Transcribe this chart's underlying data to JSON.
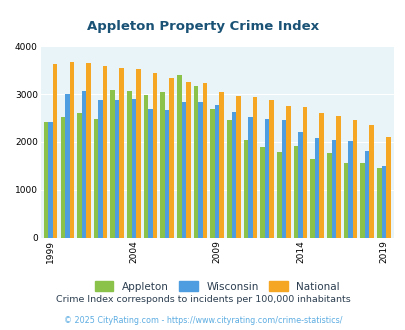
{
  "title": "Appleton Property Crime Index",
  "title_color": "#1a5276",
  "subtitle": "Crime Index corresponds to incidents per 100,000 inhabitants",
  "subtitle_color": "#2c3e50",
  "copyright": "© 2025 CityRating.com - https://www.cityrating.com/crime-statistics/",
  "copyright_color": "#5dade2",
  "years": [
    1999,
    2000,
    2001,
    2002,
    2003,
    2004,
    2005,
    2006,
    2007,
    2008,
    2009,
    2010,
    2011,
    2012,
    2013,
    2014,
    2015,
    2016,
    2017,
    2018,
    2019
  ],
  "appleton": [
    2420,
    2510,
    2600,
    2470,
    3080,
    3070,
    2970,
    3050,
    3400,
    3170,
    2680,
    2450,
    2030,
    1900,
    1780,
    1920,
    1650,
    1760,
    1560,
    1560,
    1450
  ],
  "wisconsin": [
    2420,
    3010,
    3070,
    2870,
    2870,
    2890,
    2680,
    2660,
    2840,
    2830,
    2770,
    2620,
    2510,
    2470,
    2450,
    2200,
    2090,
    2030,
    2010,
    1810,
    1490
  ],
  "national": [
    3620,
    3680,
    3640,
    3580,
    3550,
    3530,
    3450,
    3340,
    3260,
    3230,
    3050,
    2960,
    2930,
    2880,
    2740,
    2730,
    2610,
    2540,
    2460,
    2360,
    2110
  ],
  "appleton_color": "#8bc34a",
  "wisconsin_color": "#4d9de0",
  "national_color": "#f5a623",
  "bg_color": "#e8f4f8",
  "ylim": [
    0,
    4000
  ],
  "yticks": [
    0,
    1000,
    2000,
    3000,
    4000
  ],
  "xtick_years": [
    1999,
    2004,
    2009,
    2014,
    2019
  ],
  "bar_width": 0.27,
  "legend_labels": [
    "Appleton",
    "Wisconsin",
    "National"
  ]
}
